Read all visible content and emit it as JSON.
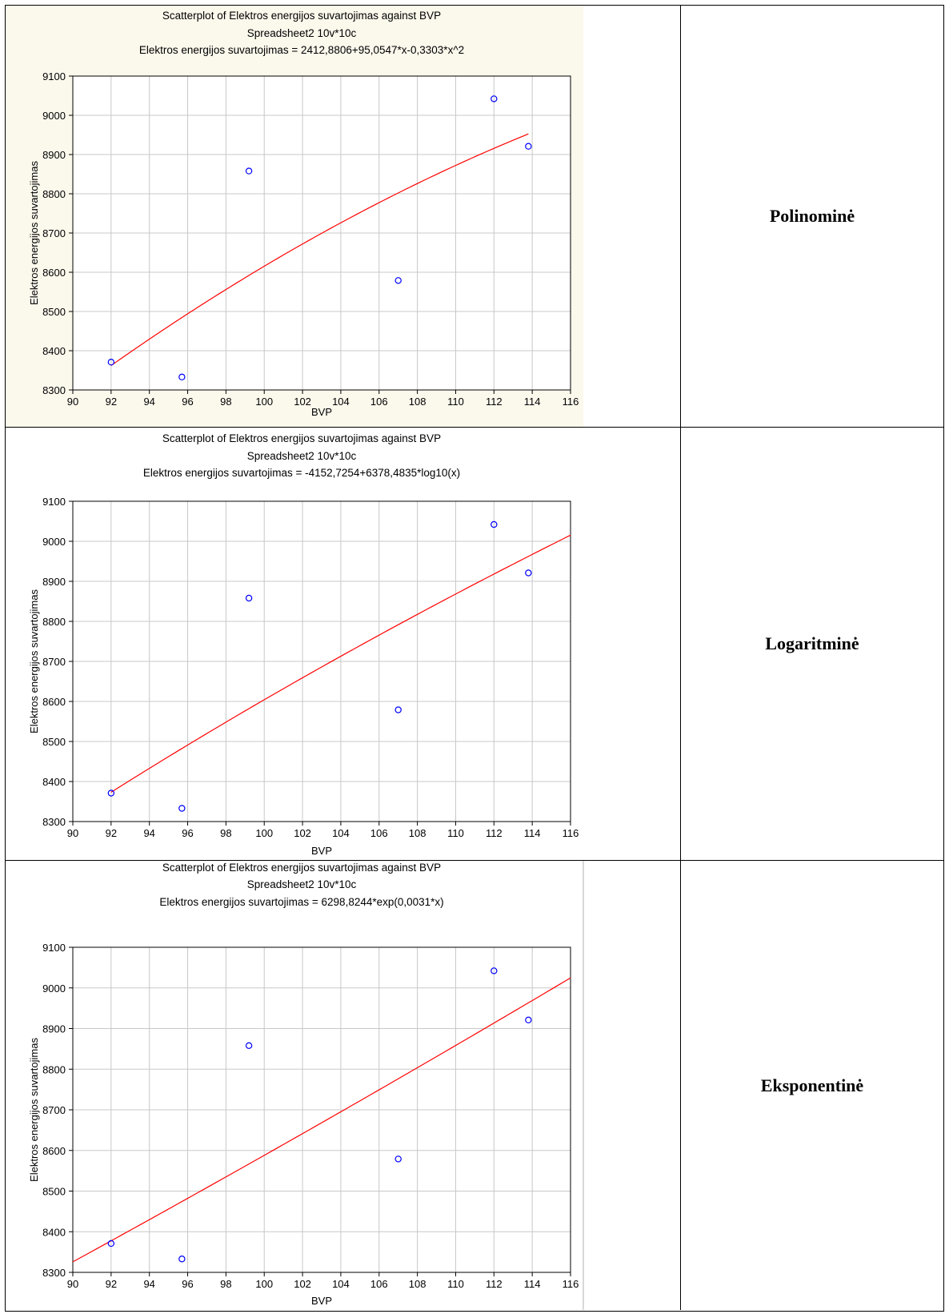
{
  "rows": [
    {
      "label": "Polinominė",
      "chart": {
        "type": "scatter",
        "title": "Scatterplot of Elektros energijos suvartojimas against BVP",
        "subtitle": "Spreadsheet2 10v*10c",
        "equation": "Elektros energijos suvartojimas = 2412,8806+95,0547*x-0,3303*x^2",
        "xlabel": "BVP",
        "ylabel": "Elektros energijos suvartojimas",
        "xlim": [
          90,
          116
        ],
        "ylim": [
          8300,
          9100
        ],
        "xticks": [
          90,
          92,
          94,
          96,
          98,
          100,
          102,
          104,
          106,
          108,
          110,
          112,
          114,
          116
        ],
        "yticks": [
          8300,
          8400,
          8500,
          8600,
          8700,
          8800,
          8900,
          9000,
          9100
        ],
        "grid": true,
        "points": {
          "x": [
            92.0,
            95.7,
            99.2,
            107.0,
            112.0,
            113.8
          ],
          "y": [
            8371,
            8333,
            8858,
            8579,
            9042,
            8921
          ]
        },
        "fit": {
          "kind": "poly",
          "a": 2412.8806,
          "b": 95.0547,
          "c": -0.3303,
          "xmin": 92,
          "xmax": 113.8
        },
        "colors": {
          "background": "#fbf8ec",
          "plot": "#ffffff",
          "points": "#0000ff",
          "line": "#ff0000",
          "grid": "#c8c8c8"
        }
      }
    },
    {
      "label": "Logaritminė",
      "chart": {
        "type": "scatter",
        "title": "Scatterplot of Elektros energijos suvartojimas against BVP",
        "subtitle": "Spreadsheet2 10v*10c",
        "equation": "Elektros energijos suvartojimas = -4152,7254+6378,4835*log10(x)",
        "xlabel": "BVP",
        "ylabel": "Elektros energijos suvartojimas",
        "xlim": [
          90,
          116
        ],
        "ylim": [
          8300,
          9100
        ],
        "xticks": [
          90,
          92,
          94,
          96,
          98,
          100,
          102,
          104,
          106,
          108,
          110,
          112,
          114,
          116
        ],
        "yticks": [
          8300,
          8400,
          8500,
          8600,
          8700,
          8800,
          8900,
          9000,
          9100
        ],
        "grid": true,
        "points": {
          "x": [
            92.0,
            95.7,
            99.2,
            107.0,
            112.0,
            113.8
          ],
          "y": [
            8371,
            8333,
            8858,
            8579,
            9042,
            8921
          ]
        },
        "fit": {
          "kind": "log10",
          "a": -4152.7254,
          "b": 6378.4835,
          "xmin": 92,
          "xmax": 116
        },
        "colors": {
          "background": "#ffffff",
          "plot": "#ffffff",
          "points": "#0000ff",
          "line": "#ff0000",
          "grid": "#c8c8c8"
        }
      }
    },
    {
      "label": "Eksponentinė",
      "chart": {
        "type": "scatter",
        "title": "Scatterplot of Elektros energijos suvartojimas against BVP",
        "subtitle": "Spreadsheet2 10v*10c",
        "equation": "Elektros energijos suvartojimas = 6298,8244*exp(0,0031*x)",
        "xlabel": "BVP",
        "ylabel": "Elektros energijos suvartojimas",
        "xlim": [
          90,
          116
        ],
        "ylim": [
          8300,
          9100
        ],
        "xticks": [
          90,
          92,
          94,
          96,
          98,
          100,
          102,
          104,
          106,
          108,
          110,
          112,
          114,
          116
        ],
        "yticks": [
          8300,
          8400,
          8500,
          8600,
          8700,
          8800,
          8900,
          9000,
          9100
        ],
        "grid": true,
        "points": {
          "x": [
            92.0,
            95.7,
            99.2,
            107.0,
            112.0,
            113.8
          ],
          "y": [
            8371,
            8333,
            8858,
            8579,
            9042,
            8921
          ]
        },
        "fit": {
          "kind": "exp",
          "a": 6298.8244,
          "b": 0.0031,
          "xmin": 90,
          "xmax": 116
        },
        "colors": {
          "background": "#ffffff",
          "plot": "#ffffff",
          "points": "#0000ff",
          "line": "#ff0000",
          "grid": "#c8c8c8"
        }
      }
    }
  ]
}
